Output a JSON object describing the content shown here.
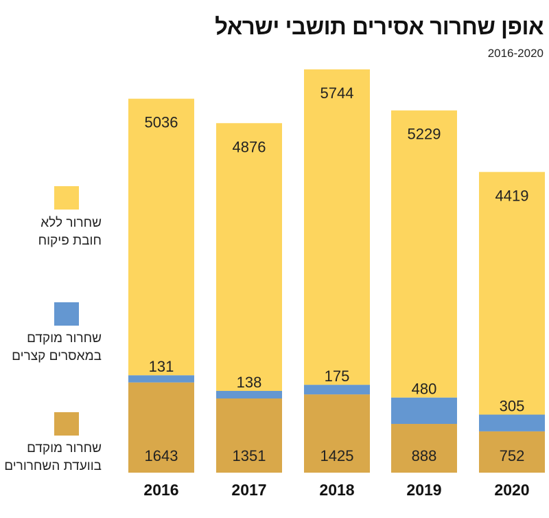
{
  "chart_data": {
    "type": "bar",
    "stacked": true,
    "title": "אופן שחרור אסירים תושבי ישראל",
    "subtitle": "2016-2020",
    "categories": [
      "2016",
      "2017",
      "2018",
      "2019",
      "2020"
    ],
    "series": [
      {
        "name": "שחרור מוקדם בוועדת השחרורים",
        "color": "#D9A84A",
        "values": [
          1643,
          1351,
          1425,
          888,
          752
        ]
      },
      {
        "name": "שחרור מוקדם במאסרים קצרים",
        "color": "#6497D1",
        "values": [
          131,
          138,
          175,
          480,
          305
        ]
      },
      {
        "name": "שחרור ללא חובת פיקוח",
        "color": "#FDD55E",
        "values": [
          5036,
          4876,
          5744,
          5229,
          4419
        ]
      }
    ],
    "legend_position": "left",
    "grid": false
  },
  "legend": {
    "items": [
      {
        "line1": "שחרור ללא",
        "line2": "חובת פיקוח"
      },
      {
        "line1": "שחרור מוקדם",
        "line2": "במאסרים קצרים"
      },
      {
        "line1": "שחרור מוקדם",
        "line2": "בוועדת השחרורים"
      }
    ]
  }
}
